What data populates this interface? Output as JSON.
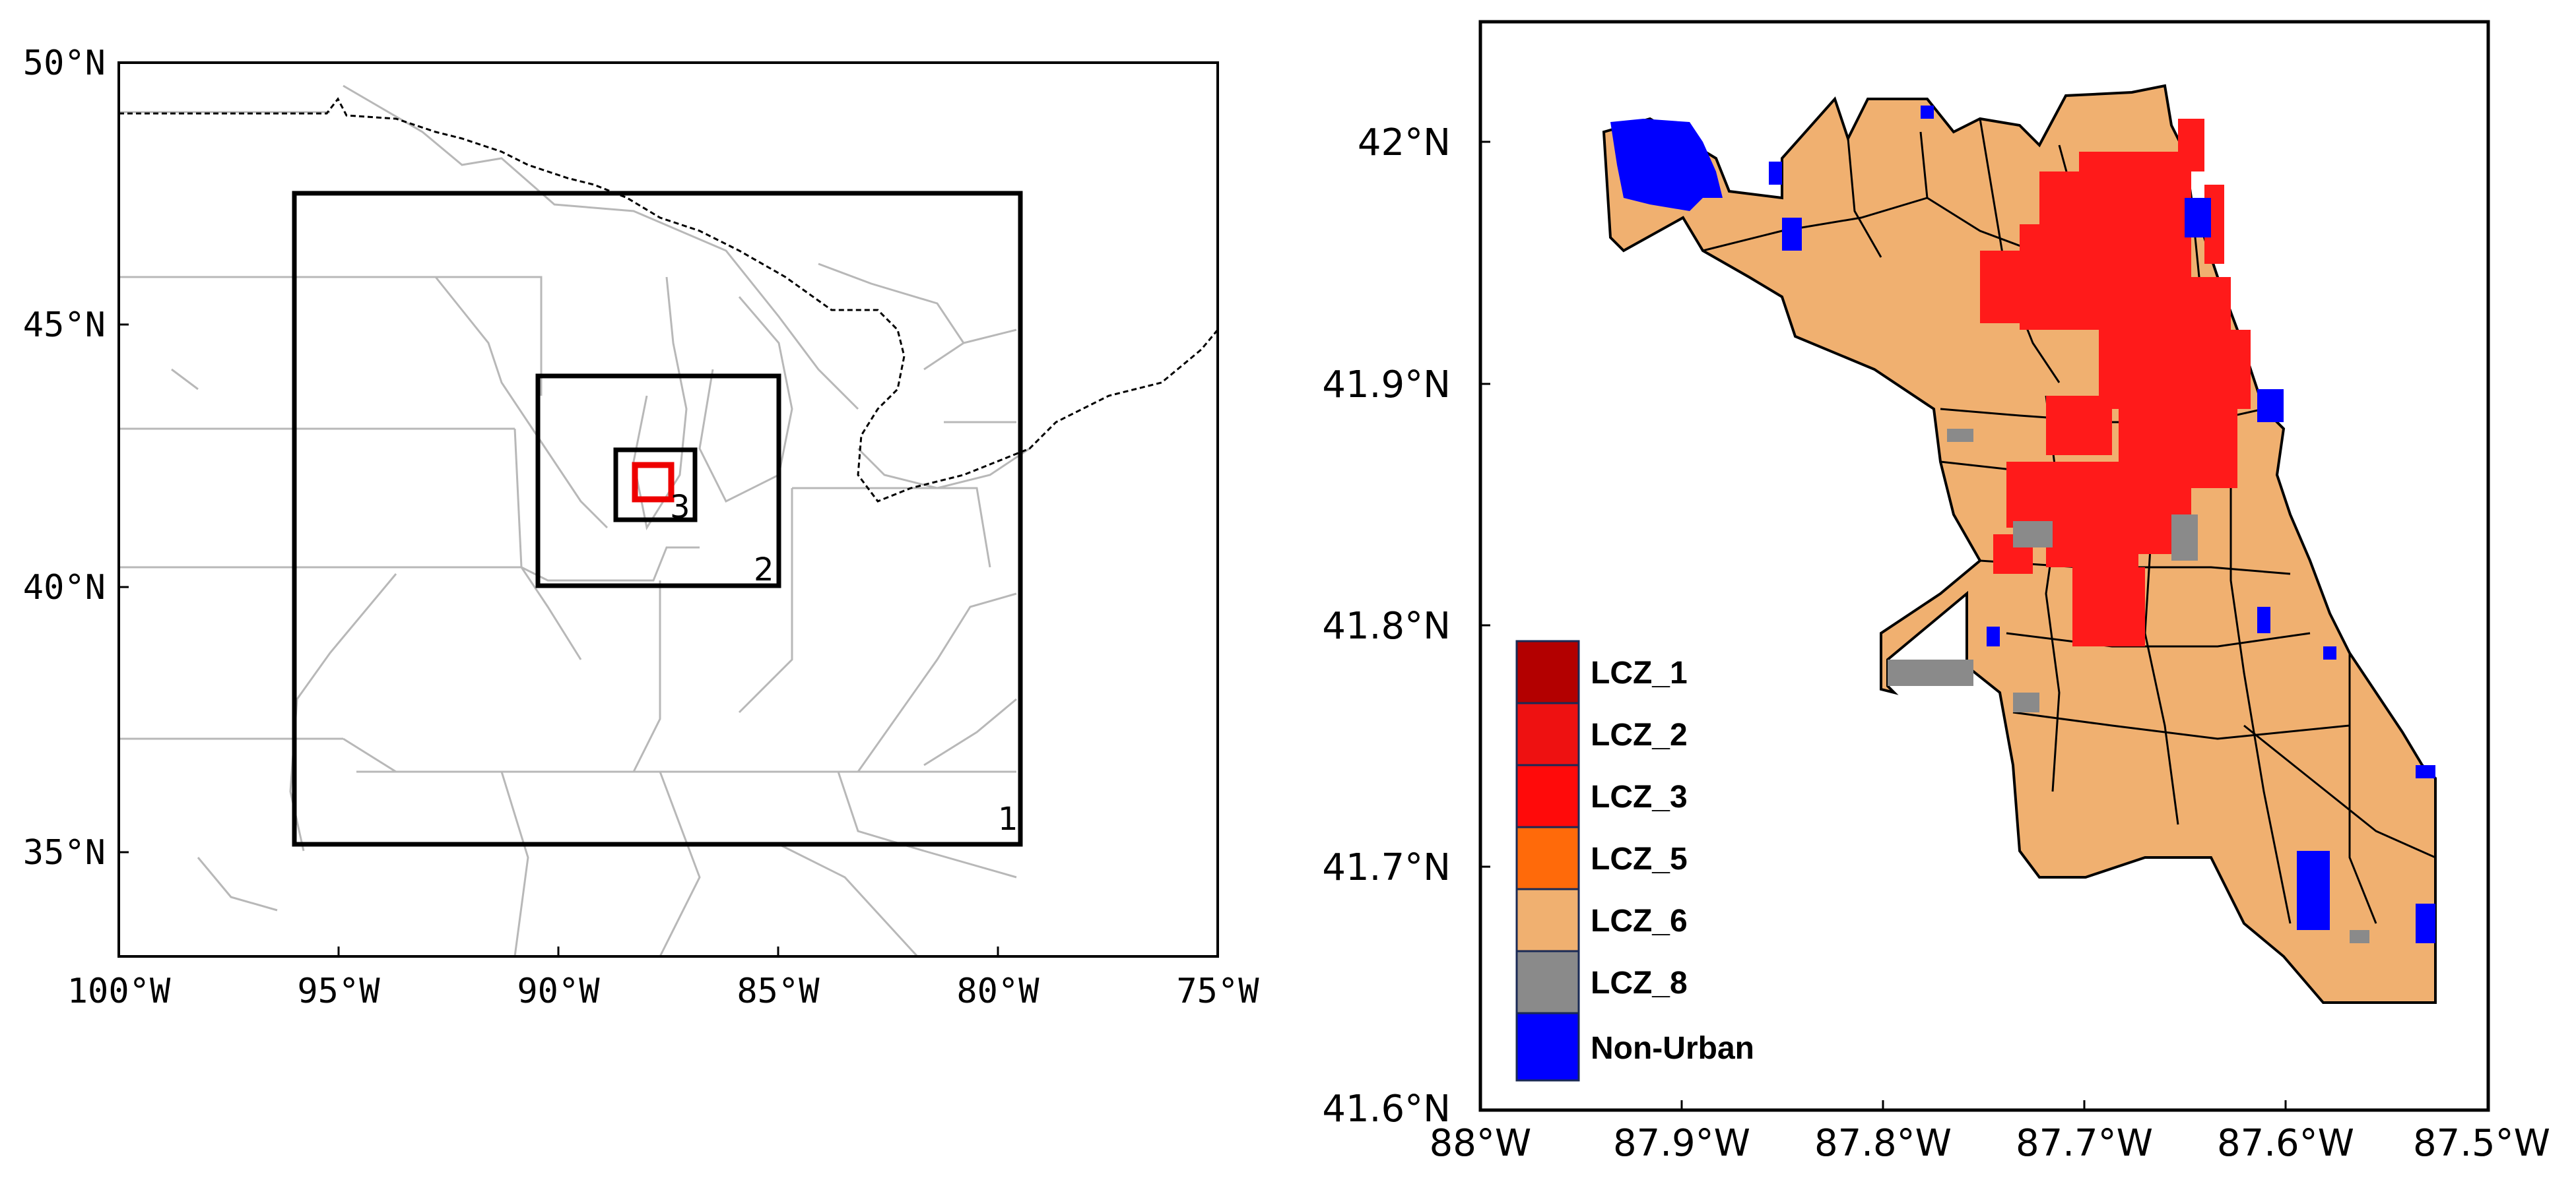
{
  "left_map": {
    "lat_ticks": [
      "50°N",
      "45°N",
      "40°N",
      "35°N"
    ],
    "lon_ticks": [
      "100°W",
      "95°W",
      "90°W",
      "85°W",
      "80°W",
      "75°W"
    ],
    "domains": [
      {
        "label": "1",
        "color": "#000000"
      },
      {
        "label": "2",
        "color": "#000000"
      },
      {
        "label": "3",
        "color": "#000000"
      },
      {
        "label": "",
        "color": "#ee0000"
      }
    ]
  },
  "right_map": {
    "lat_ticks": [
      "42°N",
      "41.9°N",
      "41.8°N",
      "41.7°N",
      "41.6°N"
    ],
    "lon_ticks": [
      "88°W",
      "87.9°W",
      "87.8°W",
      "87.7°W",
      "87.6°W",
      "87.5°W"
    ],
    "legend": [
      {
        "label": "LCZ_1",
        "color": "#b30000"
      },
      {
        "label": "LCZ_2",
        "color": "#ee1111"
      },
      {
        "label": "LCZ_3",
        "color": "#ff0a0a"
      },
      {
        "label": "LCZ_5",
        "color": "#ff6a0a"
      },
      {
        "label": "LCZ_6",
        "color": "#f0b070"
      },
      {
        "label": "LCZ_8",
        "color": "#8a8a8a"
      },
      {
        "label": "Non-Urban",
        "color": "#0000ff"
      }
    ]
  }
}
